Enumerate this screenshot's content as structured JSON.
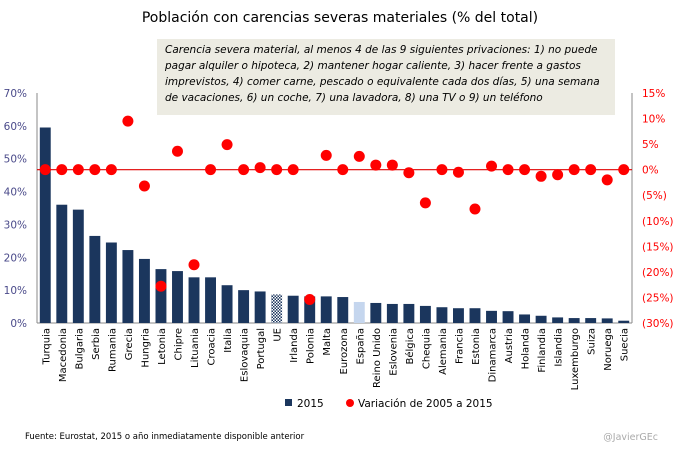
{
  "chart_data": {
    "type": "bar",
    "title": "Población con carencias severas materiales (% del total)",
    "annotation": "Carencia severa material,  al menos 4 de  las 9 siguientes privaciones:  1) no puede pagar alquiler o hipoteca, 2) mantener hogar caliente,  3) hacer frente  a gastos imprevistos, 4) comer carne,  pescado o equivalente cada dos días, 5) una semana de vacaciones,  6) un coche,  7) una lavadora, 8) una TV  o 9) un teléfono",
    "categories": [
      "Turquia",
      "Macedonia",
      "Bulgaria",
      "Serbia",
      "Rumania",
      "Grecia",
      "Hungria",
      "Letonia",
      "Chipre",
      "Lituania",
      "Croacia",
      "Italia",
      "Eslovaquia",
      "Portugal",
      "UE",
      "Irlanda",
      "Polonia",
      "Malta",
      "Eurozona",
      "España",
      "Reino Unido",
      "Eslovenia",
      "Bélgica",
      "Chequia",
      "Alemania",
      "Francia",
      "Estonia",
      "Dinamarca",
      "Austria",
      "Holanda",
      "Finlandia",
      "Islandia",
      "Luxemburgo",
      "Suiza",
      "Noruega",
      "Suecia"
    ],
    "series": [
      {
        "name": "2015",
        "axis": "left",
        "color": "#1b365d",
        "values": [
          59.5,
          36,
          34.5,
          26.5,
          24.5,
          22.2,
          19.5,
          16.4,
          15.8,
          13.9,
          13.9,
          11.5,
          10,
          9.6,
          8.7,
          8.3,
          8.1,
          8.1,
          7.9,
          6.4,
          6.1,
          5.8,
          5.8,
          5.2,
          4.8,
          4.5,
          4.5,
          3.7,
          3.6,
          2.6,
          2.2,
          1.7,
          1.5,
          1.5,
          1.4,
          0.7
        ]
      },
      {
        "name": "Variación de 2005 a 2015",
        "axis": "right",
        "color": "#ff0000",
        "values": [
          0,
          0,
          0,
          0,
          0,
          9.5,
          -3.2,
          -22.8,
          3.6,
          -18.6,
          0,
          4.9,
          0,
          0.4,
          0,
          0,
          -25.4,
          2.8,
          0,
          2.6,
          0.9,
          0.9,
          -0.6,
          -6.5,
          0,
          -0.5,
          -7.7,
          0.7,
          0,
          0,
          -1.3,
          -1.0,
          0,
          0,
          -2.0,
          0
        ]
      }
    ],
    "highlight": {
      "UE": "hatched",
      "España": "#c5d6ee"
    },
    "left_axis": {
      "ylim": [
        0,
        70
      ],
      "ticks": [
        "0%",
        "10%",
        "20%",
        "30%",
        "40%",
        "50%",
        "60%",
        "70%"
      ],
      "color": "#1b365d"
    },
    "right_axis": {
      "ylim": [
        -30,
        15
      ],
      "ticks": [
        "(30%)",
        "(25%)",
        "(20%)",
        "(15%)",
        "(10%)",
        "(5%)",
        "0%",
        "5%",
        "10%",
        "15%"
      ],
      "color": "#ff0000"
    },
    "legend": "bottom"
  },
  "footer": {
    "source": "Fuente: Eurostat, 2015 o año inmediatamente disponible anterior",
    "credit": "@JavierGEc"
  }
}
